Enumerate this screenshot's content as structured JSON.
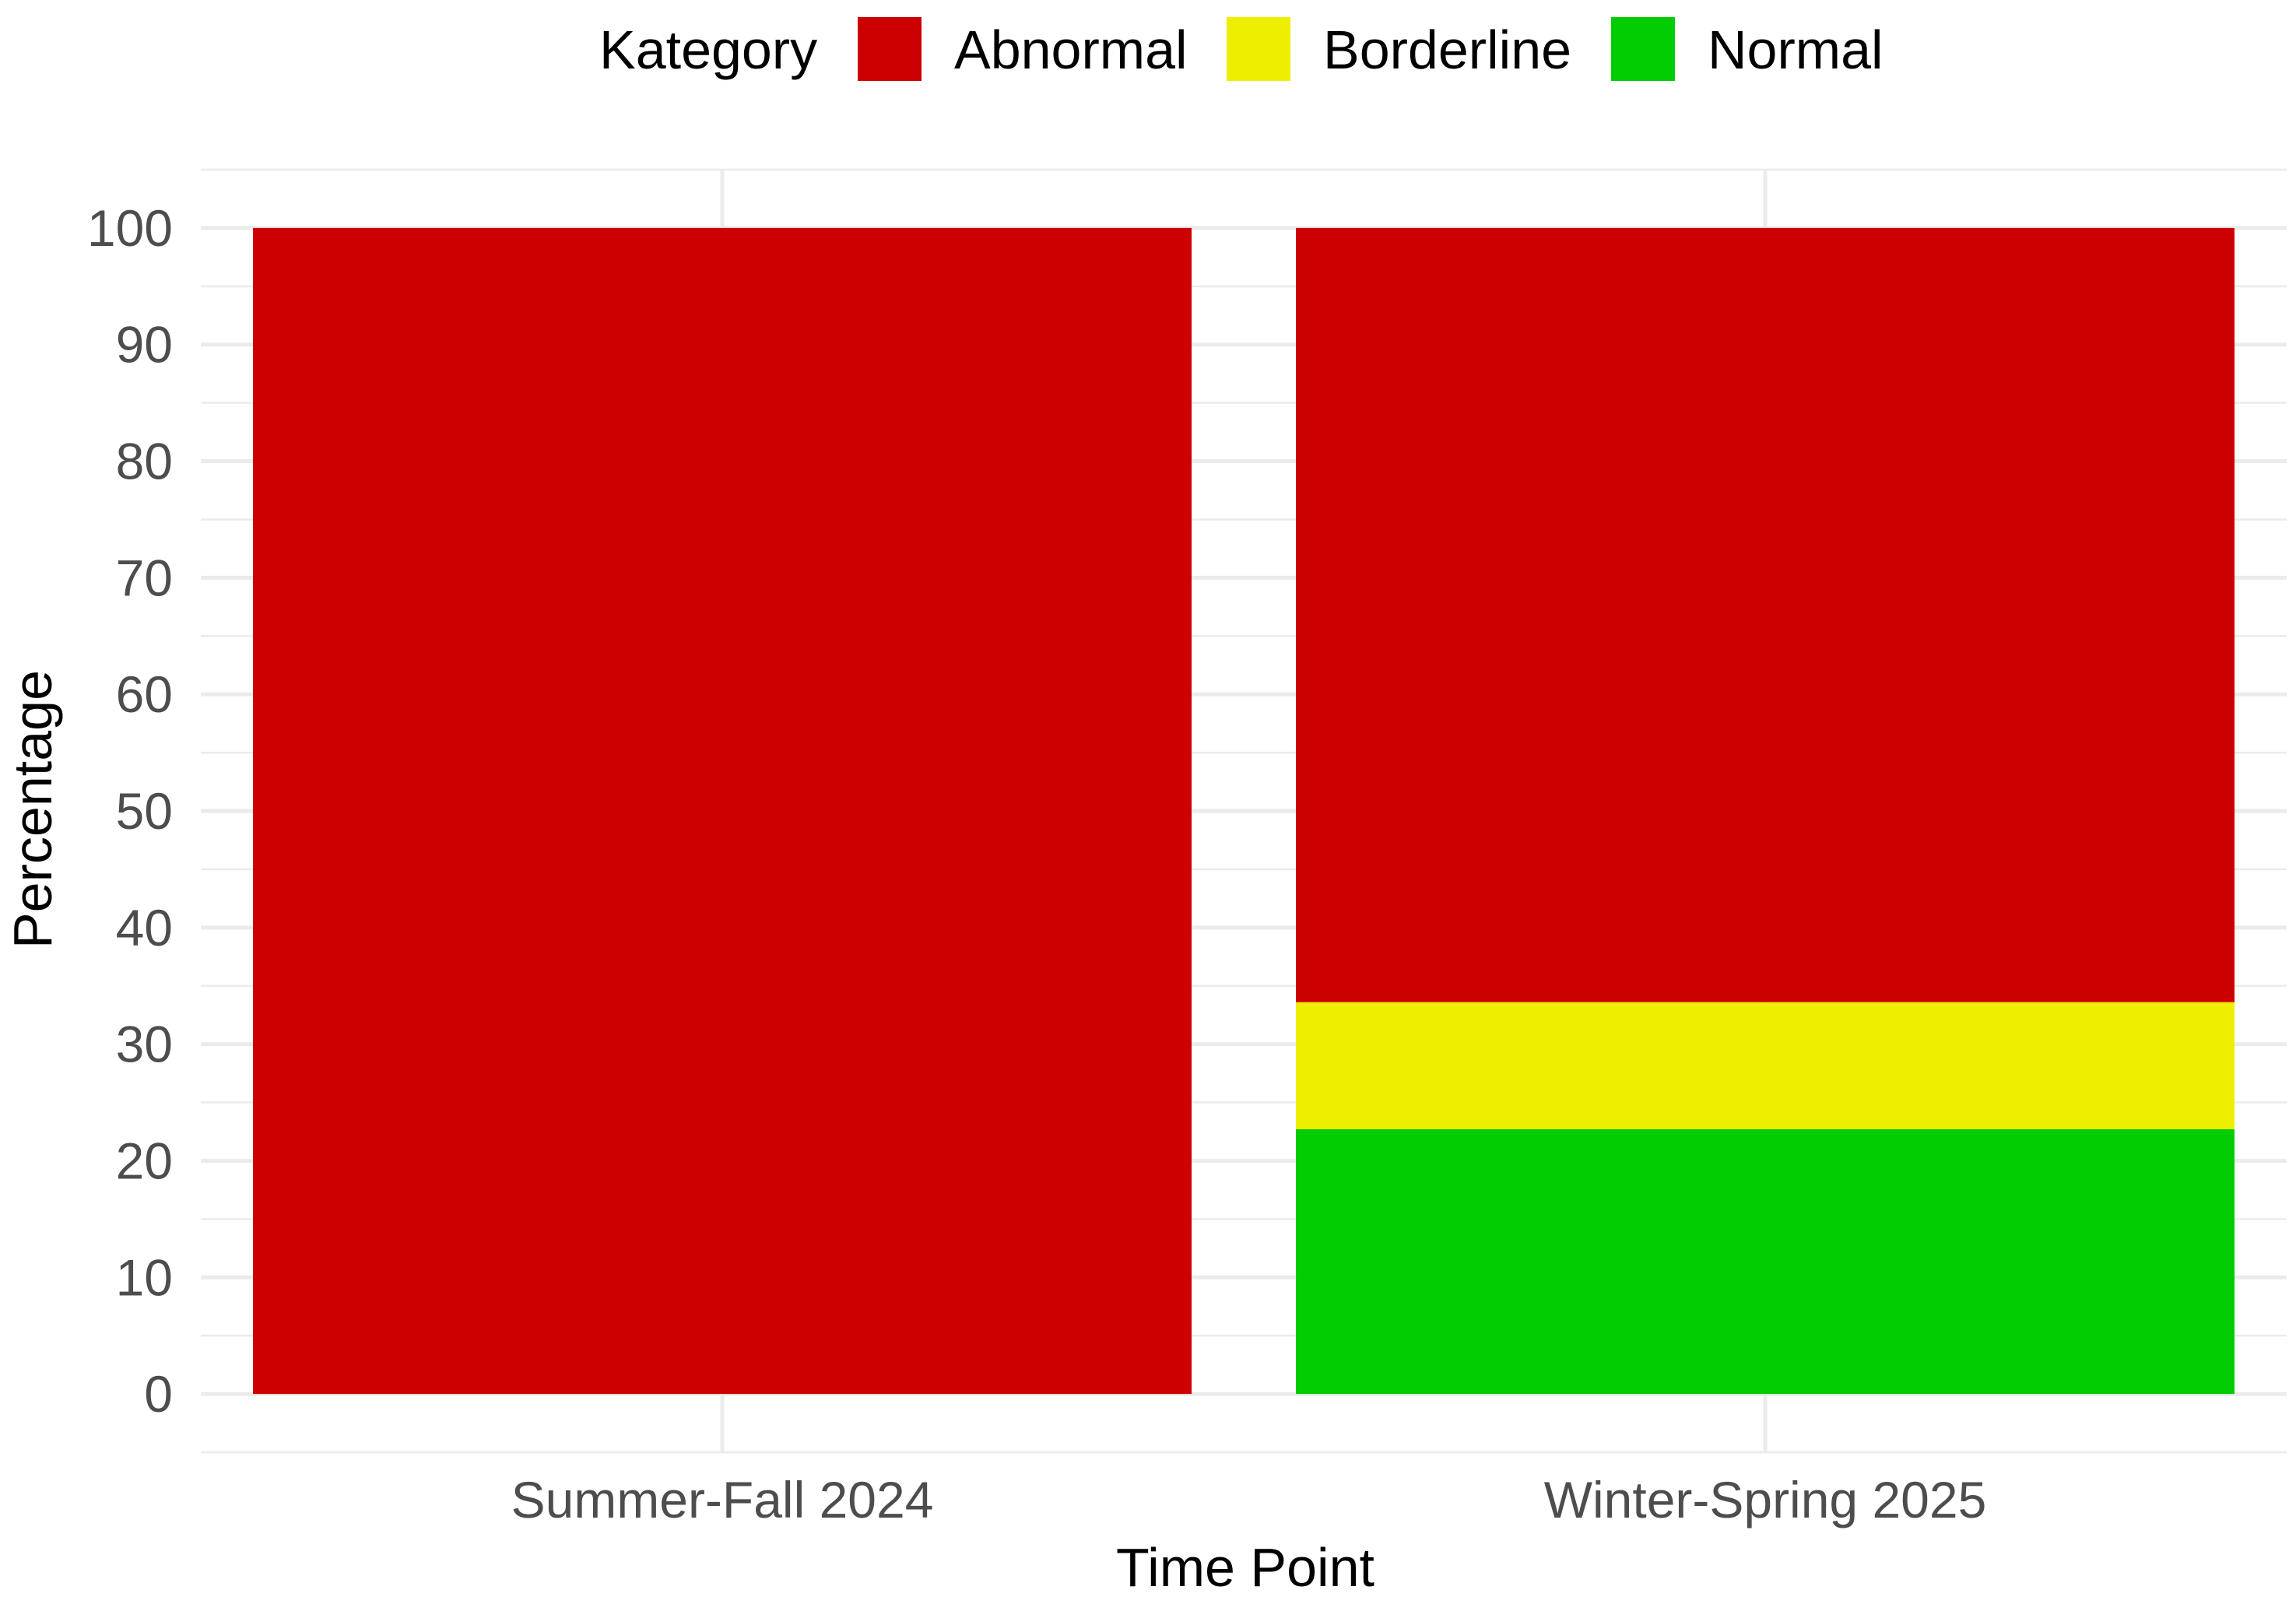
{
  "chart_data": {
    "type": "bar",
    "stacked": true,
    "categories": [
      "Summer-Fall 2024",
      "Winter-Spring 2025"
    ],
    "series": [
      {
        "name": "Normal",
        "color": "#00CC00",
        "values": [
          0,
          22.7
        ]
      },
      {
        "name": "Borderline",
        "color": "#EEEE00",
        "values": [
          0,
          10.9
        ]
      },
      {
        "name": "Abnormal",
        "color": "#CC0000",
        "values": [
          100,
          66.4
        ]
      }
    ],
    "xlabel": "Time Point",
    "ylabel": "Percentage",
    "ylim": [
      -5,
      105
    ],
    "yticks": [
      0,
      10,
      20,
      30,
      40,
      50,
      60,
      70,
      80,
      90,
      100
    ],
    "grid": true,
    "legend": {
      "title": "Kategory",
      "position": "top",
      "order": [
        "Abnormal",
        "Borderline",
        "Normal"
      ]
    }
  }
}
